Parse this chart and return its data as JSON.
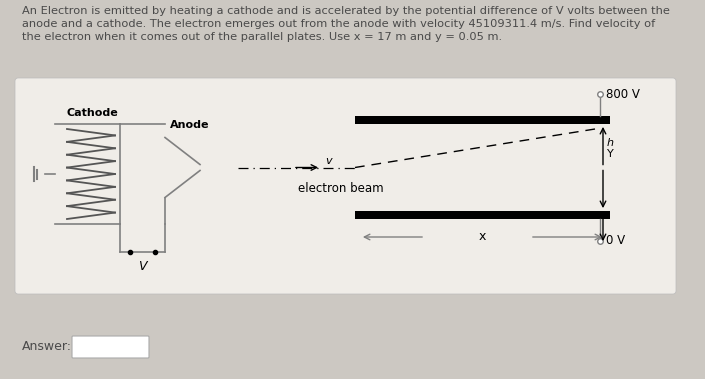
{
  "bg_color": "#ccc8c2",
  "panel_color": "#f0ede8",
  "text_color": "#4a4a4a",
  "title_lines": [
    "An Electron is emitted by heating a cathode and is accelerated by the potential difference of V volts between the",
    "anode and a cathode. The electron emerges out from the anode with velocity 45109311.4 m/s. Find velocity of",
    "the electron when it comes out of the parallel plates. Use x = 17 m and y = 0.05 m."
  ],
  "answer_label": "Answer:",
  "plate_800V_label": "800 V",
  "plate_0V_label": "0 V",
  "cathode_label": "Cathode",
  "anode_label": "Anode",
  "electron_beam_label": "electron beam",
  "v_label_arrow": "v",
  "h_label": "h",
  "y_label": "Y",
  "V_label": "V",
  "x_label": "x"
}
